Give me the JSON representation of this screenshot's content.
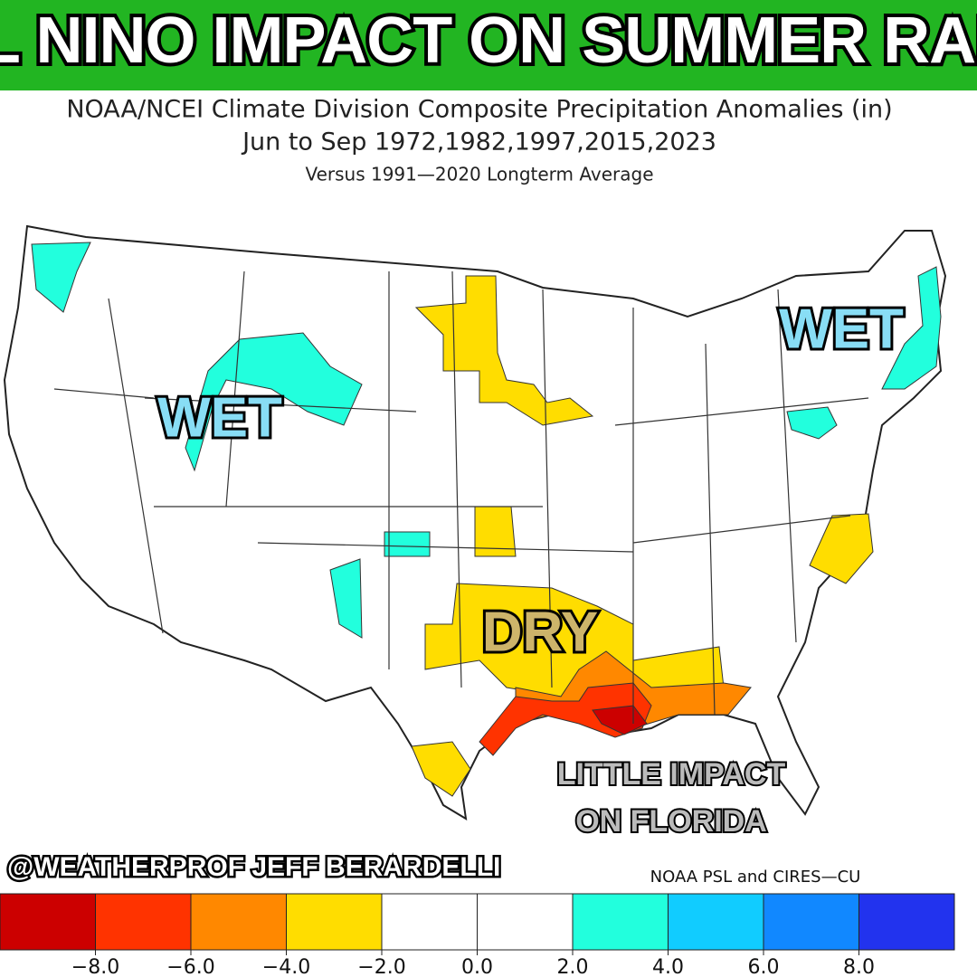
{
  "title": "EL NINO IMPACT ON SUMMER RAIN",
  "subtitle": {
    "line1": "NOAA/NCEI Climate Division Composite Precipitation Anomalies (in)",
    "line2": "Jun to Sep   1972,1982,1997,2015,2023",
    "line3": "Versus 1991—2020 Longterm Average"
  },
  "annotations": {
    "wet_west": "WET",
    "wet_east": "WET",
    "dry": "DRY",
    "florida_line1": "LITTLE IMPACT",
    "florida_line2": "ON FLORIDA"
  },
  "credit": "@WEATHERPROF JEFF BERARDELLI",
  "source": "NOAA PSL and CIRES—CU",
  "colorbar": {
    "lim": [
      -10,
      10
    ],
    "colors": [
      "#cc0000",
      "#ff3300",
      "#ff8800",
      "#ffdd00",
      "#ffffff",
      "#ffffff",
      "#22ffdd",
      "#11ccff",
      "#1188ff",
      "#2233ee"
    ],
    "ticks": [
      {
        "value": -8,
        "label": "−8.0"
      },
      {
        "value": -6,
        "label": "−6.0"
      },
      {
        "value": -4,
        "label": "−4.0"
      },
      {
        "value": -2,
        "label": "−2.0"
      },
      {
        "value": 0,
        "label": "0.0"
      },
      {
        "value": 2,
        "label": "2.0"
      },
      {
        "value": 4,
        "label": "4.0"
      },
      {
        "value": 6,
        "label": "6.0"
      },
      {
        "value": 8,
        "label": "8.0"
      }
    ]
  }
}
